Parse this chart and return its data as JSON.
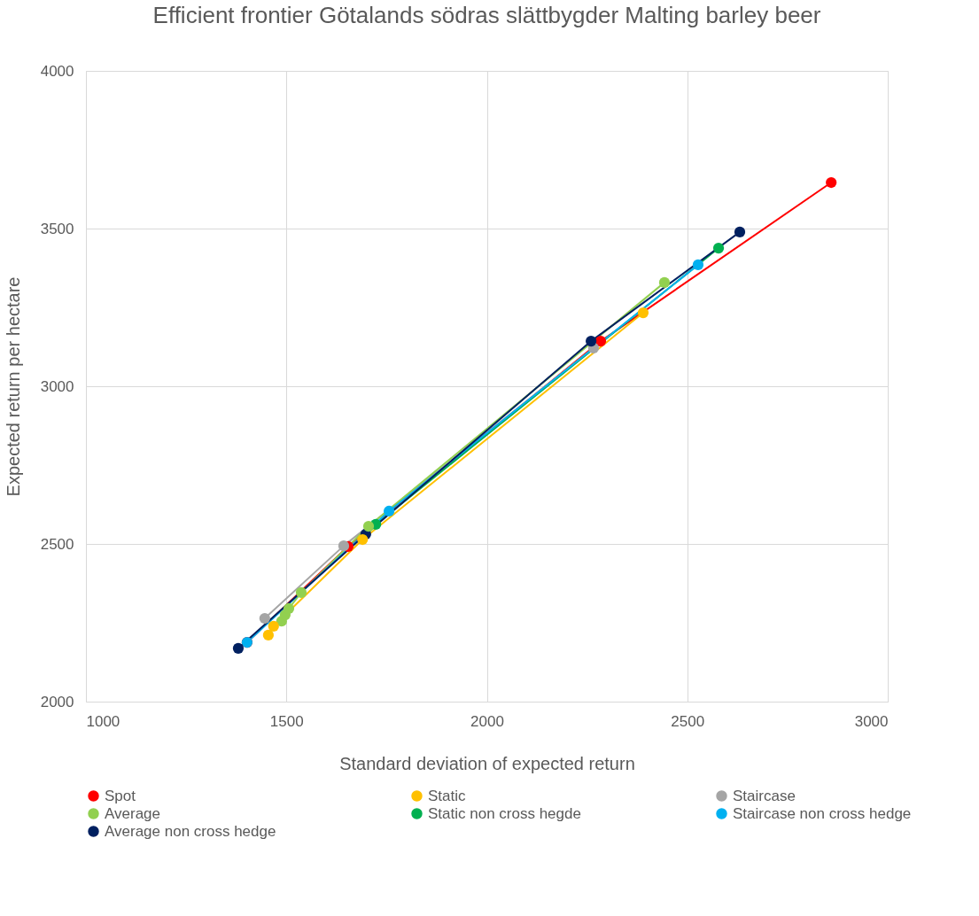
{
  "chart_data": {
    "type": "line",
    "title": "Efficient frontier Götalands södras slättbygder Malting barley beer",
    "xlabel": "Standard deviation of expected return",
    "ylabel": "Expected return per hectare",
    "xlim": [
      1000,
      3000
    ],
    "xticks": [
      1000,
      1500,
      2000,
      2500,
      3000
    ],
    "ylim": [
      2000,
      4000
    ],
    "yticks": [
      2000,
      2500,
      3000,
      3500,
      4000
    ],
    "grid": true,
    "legend": "bottom",
    "marker": "circle",
    "line_style": "solid",
    "series": [
      {
        "name": "Spot",
        "color": "#ff0000",
        "x": [
          1402,
          1654,
          2284,
          2859
        ],
        "values": [
          2188,
          2492,
          3143,
          3646
        ]
      },
      {
        "name": "Static",
        "color": "#ffc000",
        "x": [
          1455,
          1468,
          1690,
          2390
        ],
        "values": [
          2211,
          2239,
          2514,
          3233
        ]
      },
      {
        "name": "Staircase",
        "color": "#a5a5a5",
        "x": [
          1446,
          1643,
          2266
        ],
        "values": [
          2264,
          2494,
          3121
        ]
      },
      {
        "name": "Average",
        "color": "#92d050",
        "x": [
          1488,
          1497,
          1506,
          1537,
          1705,
          2443
        ],
        "values": [
          2255,
          2275,
          2295,
          2346,
          2556,
          3329
        ]
      },
      {
        "name": "Static non cross hegde",
        "color": "#00b050",
        "x": [
          1723,
          2578
        ],
        "values": [
          2562,
          3438
        ]
      },
      {
        "name": "Staircase non cross hedge",
        "color": "#00b0f0",
        "x": [
          1402,
          1756,
          2527
        ],
        "values": [
          2188,
          2604,
          3385
        ]
      },
      {
        "name": "Average non cross hedge",
        "color": "#002060",
        "x": [
          1380,
          1698,
          2260,
          2631
        ],
        "values": [
          2169,
          2531,
          3143,
          3489
        ]
      }
    ]
  }
}
